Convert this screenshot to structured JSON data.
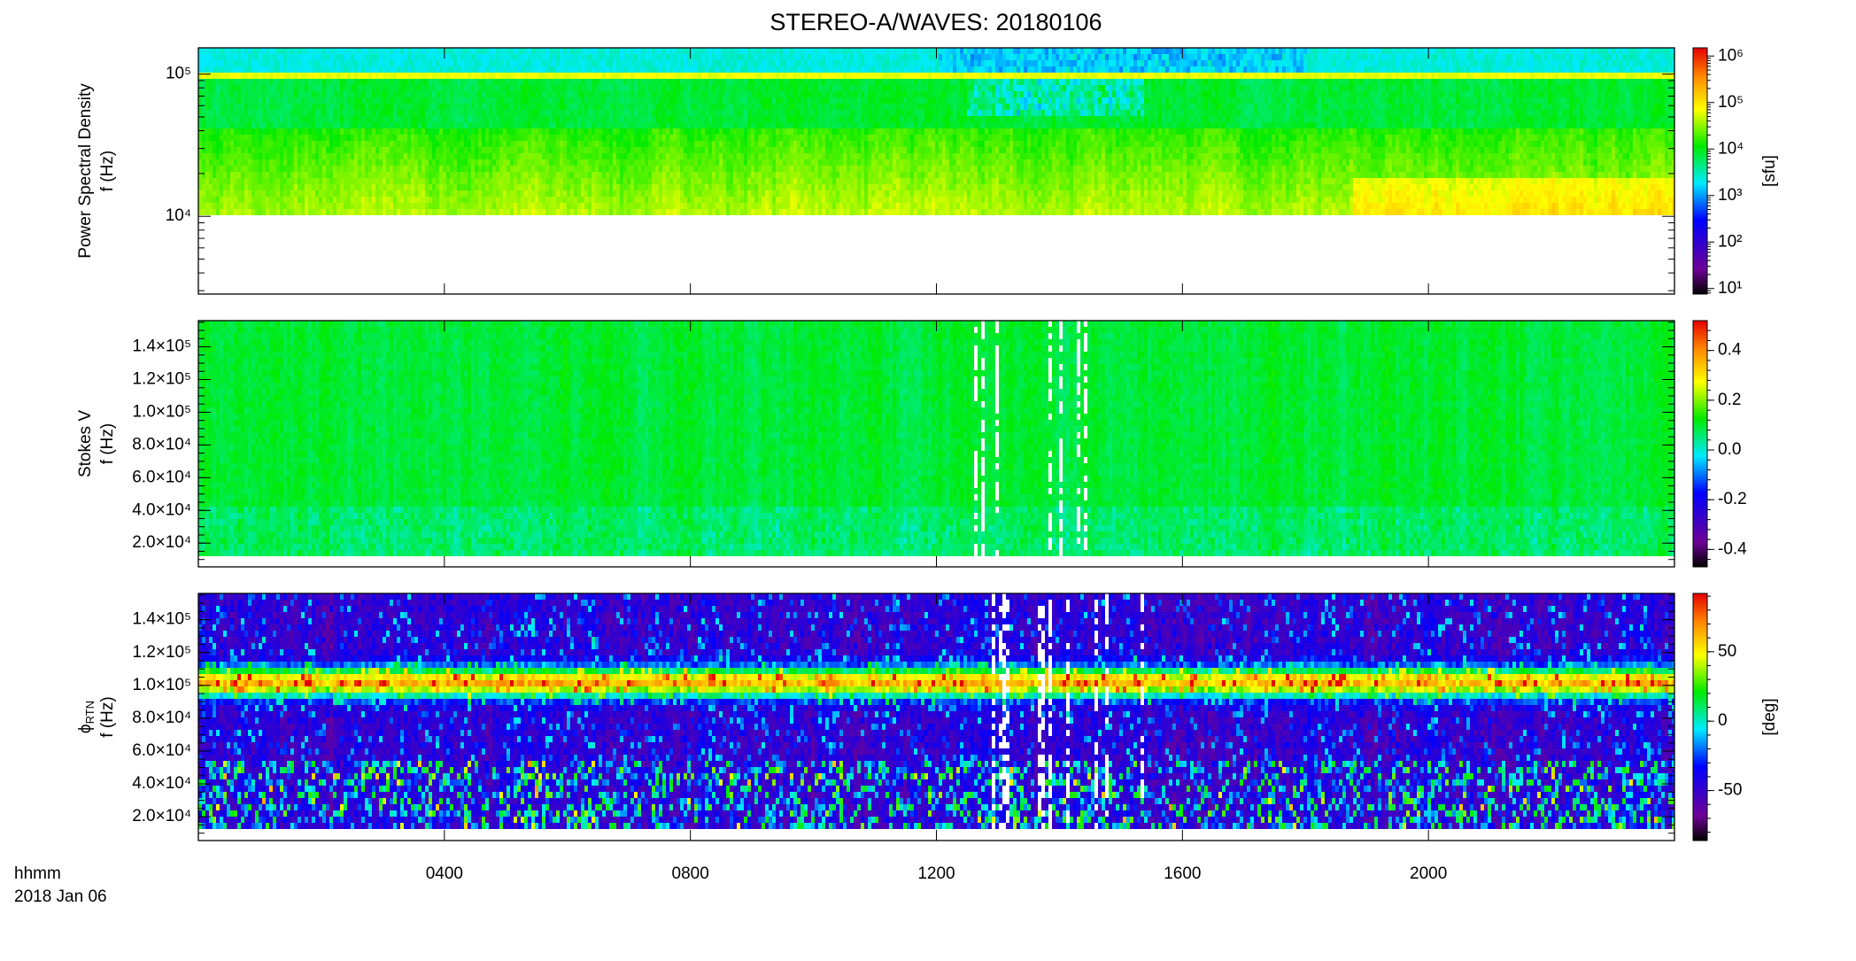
{
  "title": "STEREO-A/WAVES: 20180106",
  "time_axis": {
    "label": "hhmm",
    "date": "2018 Jan 06",
    "xlim": [
      0,
      24
    ],
    "xticks": [
      {
        "value": 4,
        "label": "0400"
      },
      {
        "value": 8,
        "label": "0800"
      },
      {
        "value": 12,
        "label": "1200"
      },
      {
        "value": 16,
        "label": "1600"
      },
      {
        "value": 20,
        "label": "2000"
      }
    ]
  },
  "chart_data": [
    {
      "type": "spectrogram",
      "y_label": "Power Spectral Density",
      "y_label_2": "f (Hz)",
      "yscale": "log",
      "ylim": [
        2840,
        153000
      ],
      "yticks": [
        {
          "value": 10000,
          "label": "10⁴"
        },
        {
          "value": 100000,
          "label": "10⁵"
        }
      ],
      "colorbar": {
        "scale": "log",
        "lim": [
          7.6,
          1500000
        ],
        "label": "[sfu]",
        "ticks": [
          {
            "value": 10,
            "label": "10¹"
          },
          {
            "value": 100,
            "label": "10²"
          },
          {
            "value": 1000,
            "label": "10³"
          },
          {
            "value": 10000,
            "label": "10⁴"
          },
          {
            "value": 100000,
            "label": "10⁵"
          },
          {
            "value": 1000000,
            "label": "10⁶"
          }
        ]
      }
    },
    {
      "type": "spectrogram",
      "y_label": "Stokes V",
      "y_label_2": "f (Hz)",
      "yscale": "linear",
      "ylim": [
        5500,
        156000
      ],
      "yticks": [
        {
          "value": 20000,
          "label": "2.0×10⁴"
        },
        {
          "value": 40000,
          "label": "4.0×10⁴"
        },
        {
          "value": 60000,
          "label": "6.0×10⁴"
        },
        {
          "value": 80000,
          "label": "8.0×10⁴"
        },
        {
          "value": 100000,
          "label": "1.0×10⁵"
        },
        {
          "value": 120000,
          "label": "1.2×10⁵"
        },
        {
          "value": 140000,
          "label": "1.4×10⁵"
        }
      ],
      "colorbar": {
        "scale": "linear",
        "lim": [
          -0.47,
          0.52
        ],
        "label": "",
        "ticks": [
          -0.4,
          -0.2,
          {
            "value": 0,
            "label": "0.0"
          },
          0.2,
          0.4
        ]
      }
    },
    {
      "type": "spectrogram",
      "y_label": "ϕ",
      "y_label_sub": "RTN",
      "y_label_2": "f (Hz)",
      "yscale": "linear",
      "ylim": [
        5500,
        156000
      ],
      "yticks": [
        {
          "value": 20000,
          "label": "2.0×10⁴"
        },
        {
          "value": 40000,
          "label": "4.0×10⁴"
        },
        {
          "value": 60000,
          "label": "6.0×10⁴"
        },
        {
          "value": 80000,
          "label": "8.0×10⁴"
        },
        {
          "value": 100000,
          "label": "1.0×10⁵"
        },
        {
          "value": 120000,
          "label": "1.2×10⁵"
        },
        {
          "value": 140000,
          "label": "1.4×10⁵"
        }
      ],
      "colorbar": {
        "scale": "linear",
        "lim": [
          -86,
          92
        ],
        "label": "[deg]",
        "ticks": [
          -50,
          0,
          50
        ]
      }
    }
  ]
}
